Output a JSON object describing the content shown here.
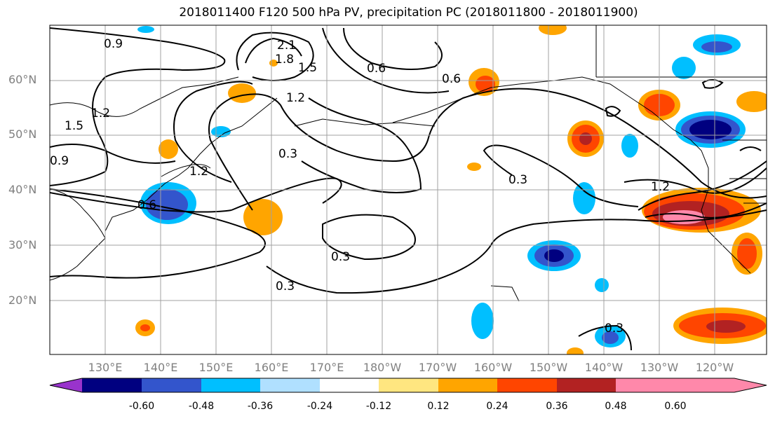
{
  "title": "2018011400 F120 500 hPa PV, precipitation PC (2018011800 - 2018011900)",
  "lat_labels": [
    "60°N",
    "50°N",
    "40°N",
    "30°N",
    "20°N"
  ],
  "lon_labels": [
    "130°E",
    "140°E",
    "150°E",
    "160°E",
    "170°E",
    "180°W",
    "170°W",
    "160°W",
    "150°W",
    "140°W",
    "130°W",
    "120°W"
  ],
  "contour_labels": [
    "0.9",
    "2.1",
    "1.8",
    "1.5",
    "0.6",
    "0.6",
    "1.2",
    "1.5",
    "1.2",
    "0.9",
    "0.3",
    "0.3",
    "1.2",
    "0.6",
    "0.3",
    "0.3",
    "1.2",
    "0.3"
  ],
  "colorbar": {
    "colors": [
      "#9933cc",
      "#000080",
      "#3355cc",
      "#00bfff",
      "#b0e0ff",
      "#ffffff",
      "#ffe680",
      "#ffa500",
      "#ff4500",
      "#b22222",
      "#ff88aa",
      "#ff88aa"
    ],
    "tick_labels": [
      "-0.60",
      "-0.48",
      "-0.36",
      "-0.24",
      "-0.12",
      "0.12",
      "0.24",
      "0.36",
      "0.48",
      "0.60"
    ]
  }
}
